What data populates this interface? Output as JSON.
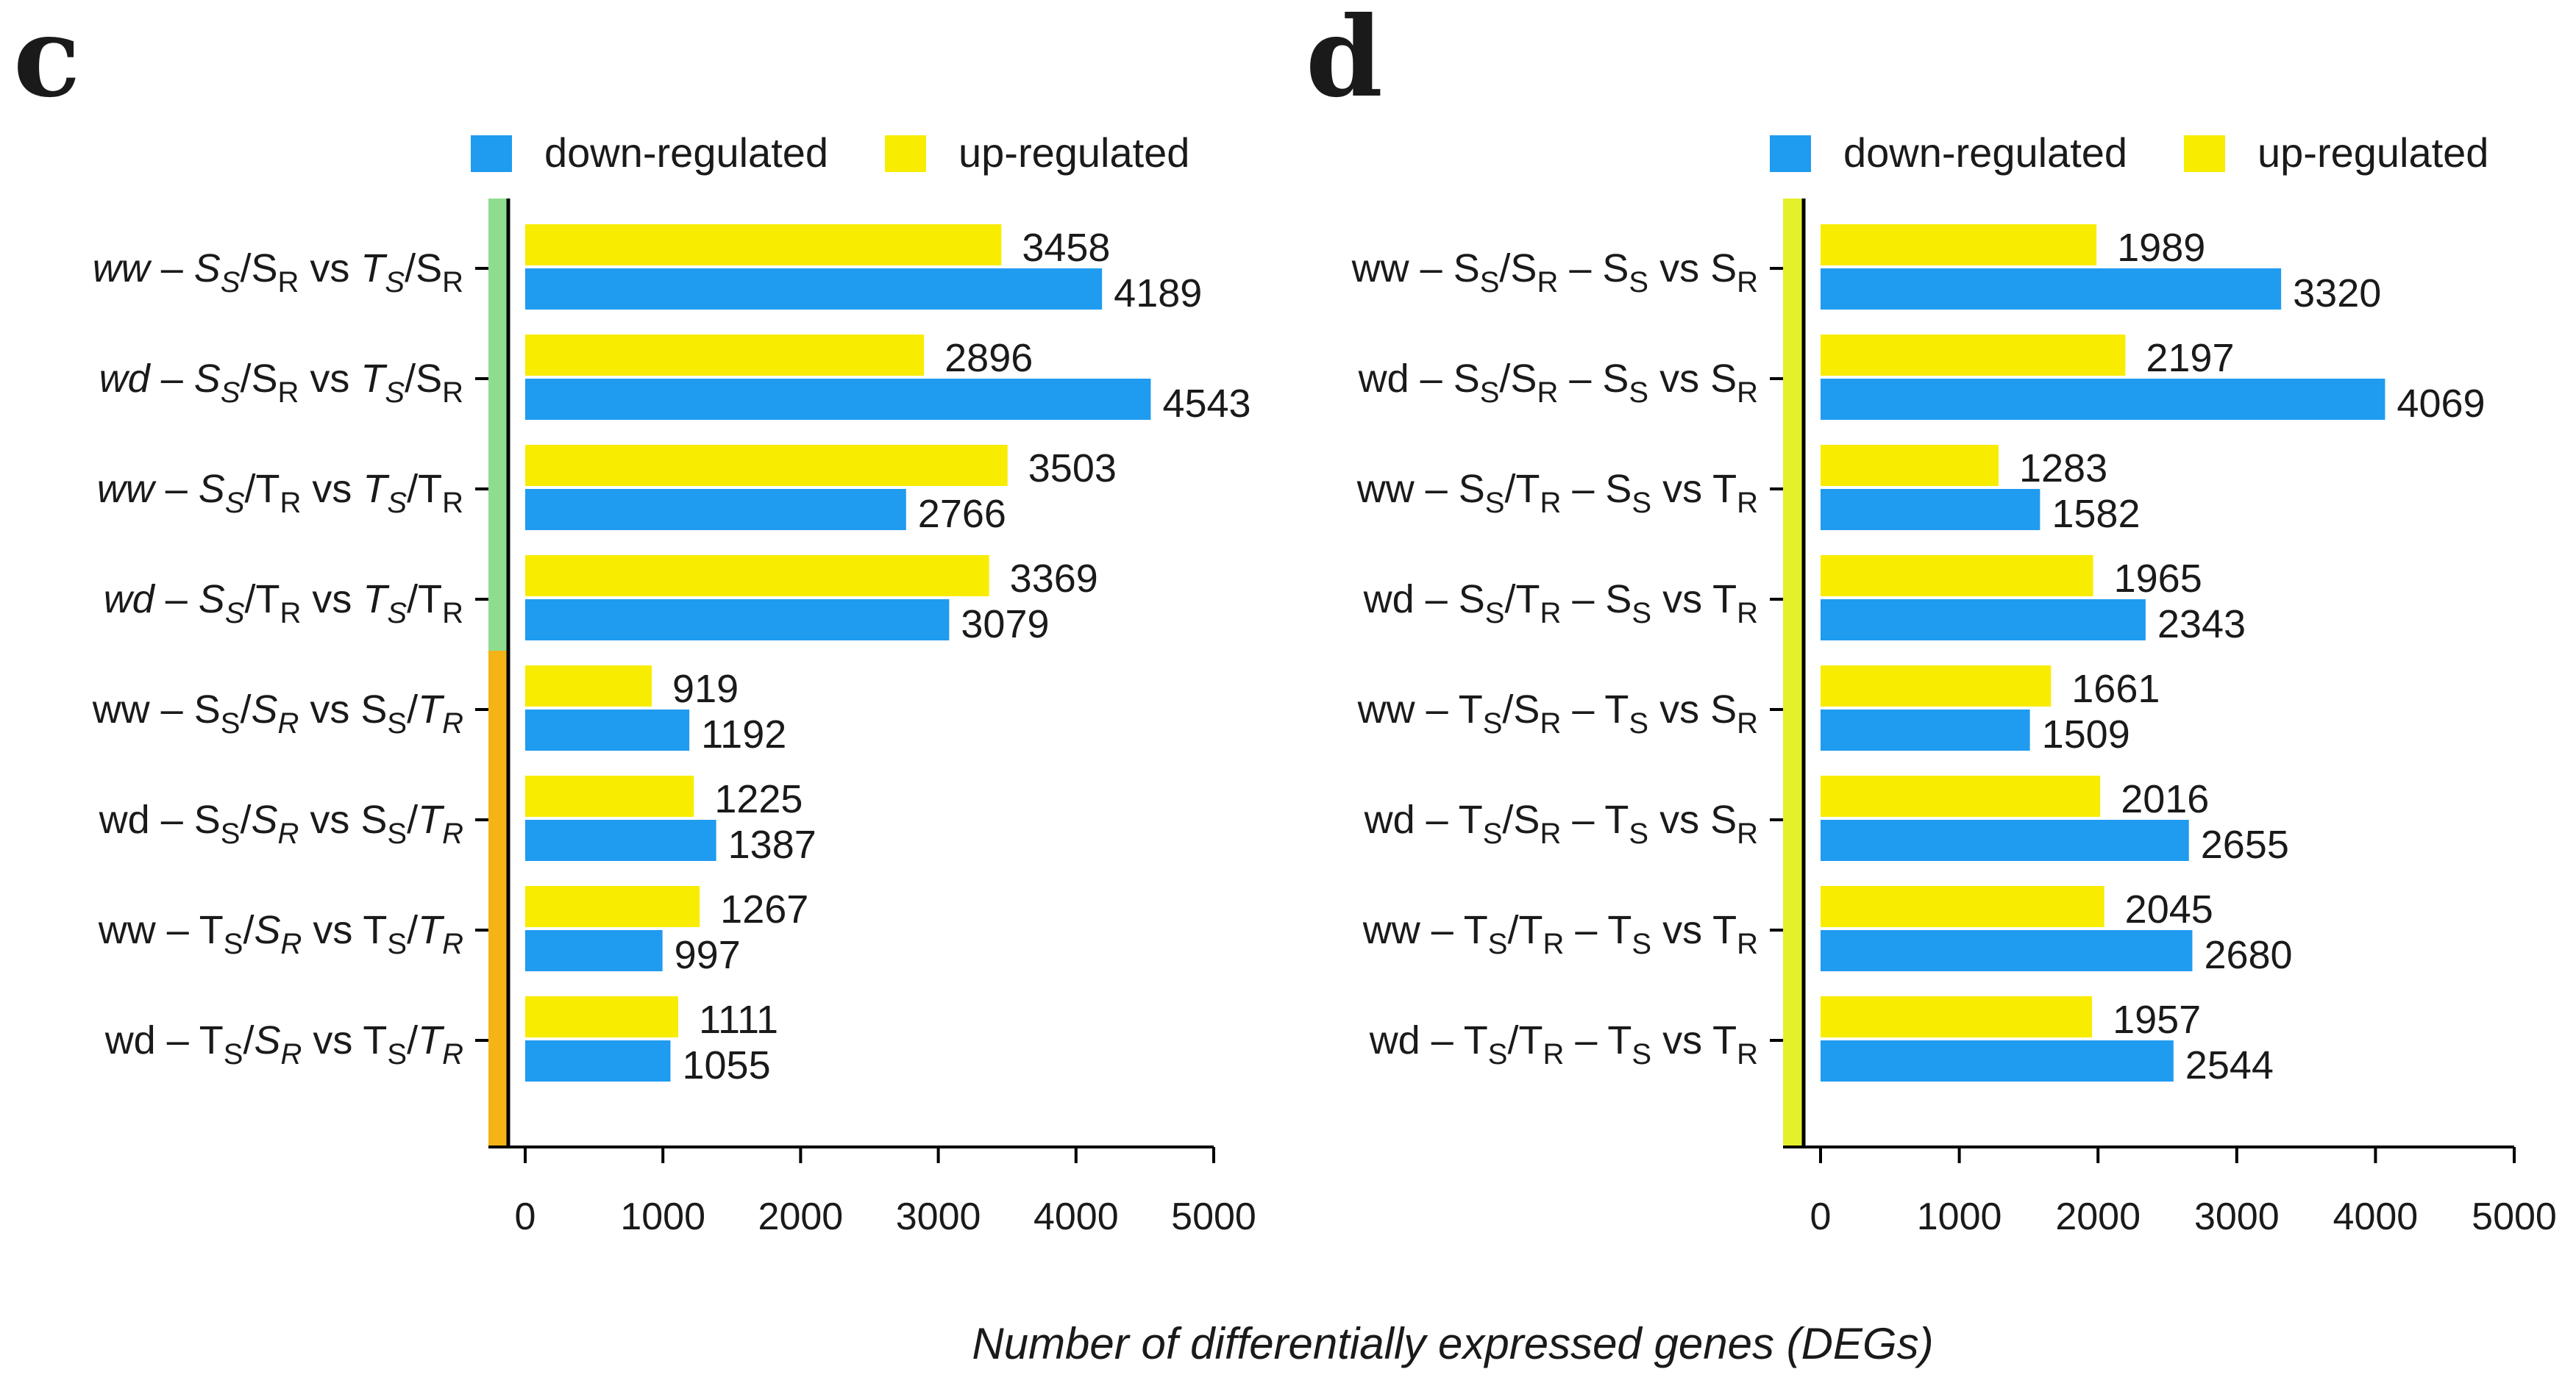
{
  "figure_title": "Number of differentially expressed genes (DEGs)",
  "colors": {
    "down": "#1f9bf0",
    "up": "#f8ec00"
  },
  "chart_data": [
    {
      "type": "bar",
      "panel": "c",
      "orientation": "horizontal",
      "xlabel": "Number of differentially expressed genes (DEGs)",
      "xlim": [
        0,
        5000
      ],
      "xticks": [
        0,
        1000,
        2000,
        3000,
        4000,
        5000
      ],
      "legend": [
        "down-regulated",
        "up-regulated"
      ],
      "legend_position": "top",
      "categories": [
        "ww – Ss/SR vs Ts/SR",
        "wd – Ss/SR vs Ts/SR",
        "ww – Ss/TR vs Ts/TR",
        "wd – Ss/TR vs Ts/TR",
        "ww – Ss/SR vs Ss/TR",
        "wd – Ss/SR vs Ss/TR",
        "ww – Ts/SR vs Ts/TR",
        "wd – Ts/SR vs Ts/TR"
      ],
      "category_labels": [
        [
          {
            "t": "ww",
            "i": true
          },
          {
            "t": " – "
          },
          {
            "t": "S",
            "i": true
          },
          {
            "t": "S",
            "i": true,
            "s": 1
          },
          {
            "t": "/S"
          },
          {
            "t": "R",
            "s": 1
          },
          {
            "t": " vs "
          },
          {
            "t": "T",
            "i": true
          },
          {
            "t": "S",
            "i": true,
            "s": 1
          },
          {
            "t": "/S"
          },
          {
            "t": "R",
            "s": 1
          }
        ],
        [
          {
            "t": "wd",
            "i": true
          },
          {
            "t": " – "
          },
          {
            "t": "S",
            "i": true
          },
          {
            "t": "S",
            "i": true,
            "s": 1
          },
          {
            "t": "/S"
          },
          {
            "t": "R",
            "s": 1
          },
          {
            "t": " vs "
          },
          {
            "t": "T",
            "i": true
          },
          {
            "t": "S",
            "i": true,
            "s": 1
          },
          {
            "t": "/S"
          },
          {
            "t": "R",
            "s": 1
          }
        ],
        [
          {
            "t": "ww",
            "i": true
          },
          {
            "t": " – "
          },
          {
            "t": "S",
            "i": true
          },
          {
            "t": "S",
            "i": true,
            "s": 1
          },
          {
            "t": "/T"
          },
          {
            "t": "R",
            "s": 1
          },
          {
            "t": " vs "
          },
          {
            "t": "T",
            "i": true
          },
          {
            "t": "S",
            "i": true,
            "s": 1
          },
          {
            "t": "/T"
          },
          {
            "t": "R",
            "s": 1
          }
        ],
        [
          {
            "t": "wd",
            "i": true
          },
          {
            "t": " – "
          },
          {
            "t": "S",
            "i": true
          },
          {
            "t": "S",
            "i": true,
            "s": 1
          },
          {
            "t": "/T"
          },
          {
            "t": "R",
            "s": 1
          },
          {
            "t": " vs "
          },
          {
            "t": "T",
            "i": true
          },
          {
            "t": "S",
            "i": true,
            "s": 1
          },
          {
            "t": "/T"
          },
          {
            "t": "R",
            "s": 1
          }
        ],
        [
          {
            "t": "ww – S"
          },
          {
            "t": "S",
            "s": 1
          },
          {
            "t": "/"
          },
          {
            "t": "S",
            "i": true
          },
          {
            "t": "R",
            "i": true,
            "s": 1
          },
          {
            "t": " vs S"
          },
          {
            "t": "S",
            "s": 1
          },
          {
            "t": "/"
          },
          {
            "t": "T",
            "i": true
          },
          {
            "t": "R",
            "i": true,
            "s": 1
          }
        ],
        [
          {
            "t": "wd – S"
          },
          {
            "t": "S",
            "s": 1
          },
          {
            "t": "/"
          },
          {
            "t": "S",
            "i": true
          },
          {
            "t": "R",
            "i": true,
            "s": 1
          },
          {
            "t": " vs S"
          },
          {
            "t": "S",
            "s": 1
          },
          {
            "t": "/"
          },
          {
            "t": "T",
            "i": true
          },
          {
            "t": "R",
            "i": true,
            "s": 1
          }
        ],
        [
          {
            "t": "ww – T"
          },
          {
            "t": "S",
            "s": 1
          },
          {
            "t": "/"
          },
          {
            "t": "S",
            "i": true
          },
          {
            "t": "R",
            "i": true,
            "s": 1
          },
          {
            "t": " vs T"
          },
          {
            "t": "S",
            "s": 1
          },
          {
            "t": "/"
          },
          {
            "t": "T",
            "i": true
          },
          {
            "t": "R",
            "i": true,
            "s": 1
          }
        ],
        [
          {
            "t": "wd – T"
          },
          {
            "t": "S",
            "s": 1
          },
          {
            "t": "/"
          },
          {
            "t": "S",
            "i": true
          },
          {
            "t": "R",
            "i": true,
            "s": 1
          },
          {
            "t": " vs T"
          },
          {
            "t": "S",
            "s": 1
          },
          {
            "t": "/"
          },
          {
            "t": "T",
            "i": true
          },
          {
            "t": "R",
            "i": true,
            "s": 1
          }
        ]
      ],
      "group_colors": [
        "#8fdc8f",
        "#8fdc8f",
        "#8fdc8f",
        "#8fdc8f",
        "#f5b316",
        "#f5b316",
        "#f5b316",
        "#f5b316"
      ],
      "series": [
        {
          "name": "up-regulated",
          "values": [
            3458,
            2896,
            3503,
            3369,
            919,
            1225,
            1267,
            1111
          ]
        },
        {
          "name": "down-regulated",
          "values": [
            4189,
            4543,
            2766,
            3079,
            1192,
            1387,
            997,
            1055
          ]
        }
      ]
    },
    {
      "type": "bar",
      "panel": "d",
      "orientation": "horizontal",
      "xlabel": "Number of differentially expressed genes (DEGs)",
      "xlim": [
        0,
        5000
      ],
      "xticks": [
        0,
        1000,
        2000,
        3000,
        4000,
        5000
      ],
      "legend": [
        "down-regulated",
        "up-regulated"
      ],
      "legend_position": "top",
      "categories": [
        "ww – Ss/SR – Ss vs SR",
        "wd – Ss/SR – Ss vs SR",
        "ww – Ss/TR – Ss vs TR",
        "wd – Ss/TR – Ss vs TR",
        "ww – Ts/SR – Ts vs SR",
        "wd – Ts/SR – Ts vs SR",
        "ww – Ts/TR – Ts vs TR",
        "wd – Ts/TR – Ts vs TR"
      ],
      "category_labels": [
        [
          {
            "t": "ww – S"
          },
          {
            "t": "S",
            "s": 1
          },
          {
            "t": "/S"
          },
          {
            "t": "R",
            "s": 1
          },
          {
            "t": " – S"
          },
          {
            "t": "S",
            "s": 1
          },
          {
            "t": " vs S"
          },
          {
            "t": "R",
            "s": 1
          }
        ],
        [
          {
            "t": "wd – S"
          },
          {
            "t": "S",
            "s": 1
          },
          {
            "t": "/S"
          },
          {
            "t": "R",
            "s": 1
          },
          {
            "t": " – S"
          },
          {
            "t": "S",
            "s": 1
          },
          {
            "t": " vs S"
          },
          {
            "t": "R",
            "s": 1
          }
        ],
        [
          {
            "t": "ww – S"
          },
          {
            "t": "S",
            "s": 1
          },
          {
            "t": "/T"
          },
          {
            "t": "R",
            "s": 1
          },
          {
            "t": " – S"
          },
          {
            "t": "S",
            "s": 1
          },
          {
            "t": " vs T"
          },
          {
            "t": "R",
            "s": 1
          }
        ],
        [
          {
            "t": "wd – S"
          },
          {
            "t": "S",
            "s": 1
          },
          {
            "t": "/T"
          },
          {
            "t": "R",
            "s": 1
          },
          {
            "t": " – S"
          },
          {
            "t": "S",
            "s": 1
          },
          {
            "t": " vs T"
          },
          {
            "t": "R",
            "s": 1
          }
        ],
        [
          {
            "t": "ww – T"
          },
          {
            "t": "S",
            "s": 1
          },
          {
            "t": "/S"
          },
          {
            "t": "R",
            "s": 1
          },
          {
            "t": " – T"
          },
          {
            "t": "S",
            "s": 1
          },
          {
            "t": " vs S"
          },
          {
            "t": "R",
            "s": 1
          }
        ],
        [
          {
            "t": "wd – T"
          },
          {
            "t": "S",
            "s": 1
          },
          {
            "t": "/S"
          },
          {
            "t": "R",
            "s": 1
          },
          {
            "t": " – T"
          },
          {
            "t": "S",
            "s": 1
          },
          {
            "t": " vs S"
          },
          {
            "t": "R",
            "s": 1
          }
        ],
        [
          {
            "t": "ww – T"
          },
          {
            "t": "S",
            "s": 1
          },
          {
            "t": "/T"
          },
          {
            "t": "R",
            "s": 1
          },
          {
            "t": " – T"
          },
          {
            "t": "S",
            "s": 1
          },
          {
            "t": " vs T"
          },
          {
            "t": "R",
            "s": 1
          }
        ],
        [
          {
            "t": "wd – T"
          },
          {
            "t": "S",
            "s": 1
          },
          {
            "t": "/T"
          },
          {
            "t": "R",
            "s": 1
          },
          {
            "t": " – T"
          },
          {
            "t": "S",
            "s": 1
          },
          {
            "t": " vs T"
          },
          {
            "t": "R",
            "s": 1
          }
        ]
      ],
      "group_colors": [
        "#e4f02a",
        "#e4f02a",
        "#e4f02a",
        "#e4f02a",
        "#e4f02a",
        "#e4f02a",
        "#e4f02a",
        "#e4f02a"
      ],
      "series": [
        {
          "name": "up-regulated",
          "values": [
            1989,
            2197,
            1283,
            1965,
            1661,
            2016,
            2045,
            1957
          ]
        },
        {
          "name": "down-regulated",
          "values": [
            3320,
            4069,
            1582,
            2343,
            1509,
            2655,
            2680,
            2544
          ]
        }
      ]
    }
  ]
}
